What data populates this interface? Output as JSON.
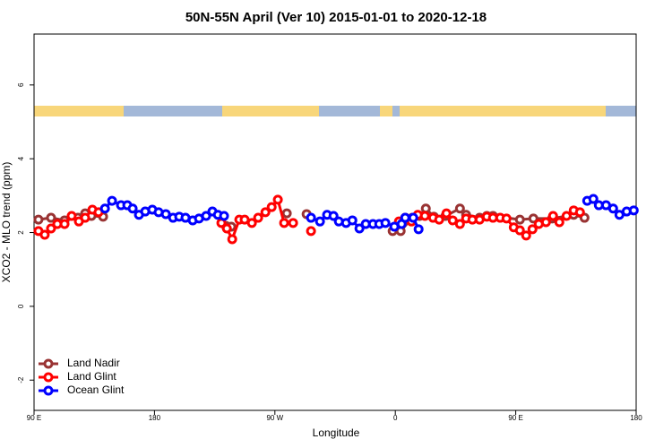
{
  "chart_data": {
    "type": "line",
    "title": "50N-55N April (Ver 10)   2015-01-01 to 2020-12-18",
    "x_label": "Longitude",
    "y_label": "XCO2 - MLO trend (ppm)",
    "xlim": [
      90,
      540
    ],
    "ylim": [
      -2.82,
      7.38
    ],
    "xticks": [
      {
        "value": 90,
        "label": "90 E"
      },
      {
        "value": 180,
        "label": "180"
      },
      {
        "value": 270,
        "label": "90 W"
      },
      {
        "value": 360,
        "label": "0"
      },
      {
        "value": 450,
        "label": "90 E"
      },
      {
        "value": 540,
        "label": "180"
      }
    ],
    "yticks": [
      -2,
      0,
      2,
      4,
      6
    ],
    "legend": "bottomleft",
    "series": [
      {
        "name": "Land Nadir",
        "color": "#993333",
        "x": [
          93.3,
          102.7,
          112.8,
          122.8,
          128.2,
          132.9,
          141.6,
          null,
          233.4,
          237.4,
          null,
          278.9,
          null,
          293.7,
          null,
          358,
          364,
          372.7,
          378.1,
          382.8,
          388.8,
          397.5,
          408.3,
          412.9,
          423,
          428.4,
          433,
          453.1,
          463.2,
          477.2,
          493.3,
          501.4
        ],
        "values": [
          2.35,
          2.4,
          2.33,
          2.4,
          2.52,
          2.45,
          2.43,
          null,
          2.18,
          2.16,
          null,
          2.52,
          null,
          2.5,
          null,
          2.04,
          2.04,
          2.4,
          2.45,
          2.65,
          2.43,
          2.45,
          2.65,
          2.48,
          2.4,
          2.45,
          2.45,
          2.35,
          2.38,
          2.38,
          2.48,
          2.4
        ]
      },
      {
        "name": "Land Glint",
        "color": "#ff0000",
        "x": [
          93.3,
          98,
          102.7,
          107.4,
          112.8,
          118.1,
          123.5,
          128.2,
          133.6,
          138.2,
          null,
          230,
          234.1,
          238.1,
          243.4,
          247.4,
          252.8,
          257.5,
          262.9,
          267.6,
          272.2,
          276.9,
          283.6,
          null,
          297,
          null,
          362.7,
          367.4,
          372.1,
          376.8,
          382.1,
          388.2,
          392.8,
          398.2,
          402.9,
          408.3,
          412.9,
          417.6,
          423,
          428.4,
          433,
          438.4,
          443.1,
          448.5,
          453.1,
          457.8,
          462.5,
          467.2,
          472.6,
          477.9,
          482.6,
          488,
          493.3,
          498
        ],
        "values": [
          2.04,
          1.94,
          2.11,
          2.23,
          2.23,
          2.45,
          2.3,
          2.4,
          2.62,
          2.55,
          null,
          2.26,
          2.11,
          1.82,
          2.35,
          2.35,
          2.26,
          2.4,
          2.55,
          2.69,
          2.89,
          2.26,
          2.26,
          null,
          2.04,
          null,
          2.3,
          2.4,
          2.3,
          2.48,
          2.45,
          2.4,
          2.35,
          2.52,
          2.33,
          2.23,
          2.38,
          2.35,
          2.35,
          2.43,
          2.4,
          2.4,
          2.38,
          2.14,
          2.06,
          1.92,
          2.09,
          2.23,
          2.28,
          2.45,
          2.28,
          2.45,
          2.6,
          2.55
        ]
      },
      {
        "name": "Ocean Glint",
        "color": "#0000ff",
        "x": [
          143,
          148.3,
          155,
          159.7,
          163.7,
          168.4,
          173.1,
          178.4,
          183.1,
          188.5,
          193.9,
          198.5,
          203.2,
          208.6,
          213.3,
          218.6,
          223.3,
          227.4,
          232,
          null,
          297,
          303.7,
          309,
          313.8,
          317.8,
          323.2,
          327.9,
          333.2,
          337.9,
          343.3,
          348,
          352.6,
          359.3,
          364.7,
          367.4,
          373.4,
          377.4,
          null,
          503.4,
          508,
          512.1,
          517.5,
          522.8,
          527.5,
          532.9,
          538.2
        ],
        "values": [
          2.65,
          2.86,
          2.74,
          2.74,
          2.65,
          2.48,
          2.57,
          2.62,
          2.55,
          2.5,
          2.4,
          2.43,
          2.4,
          2.33,
          2.38,
          2.45,
          2.57,
          2.48,
          2.45,
          null,
          2.4,
          2.3,
          2.48,
          2.45,
          2.3,
          2.26,
          2.33,
          2.11,
          2.23,
          2.23,
          2.23,
          2.26,
          2.16,
          2.23,
          2.4,
          2.4,
          2.09,
          null,
          2.86,
          2.91,
          2.74,
          2.74,
          2.65,
          2.48,
          2.57,
          2.6
        ]
      }
    ]
  }
}
